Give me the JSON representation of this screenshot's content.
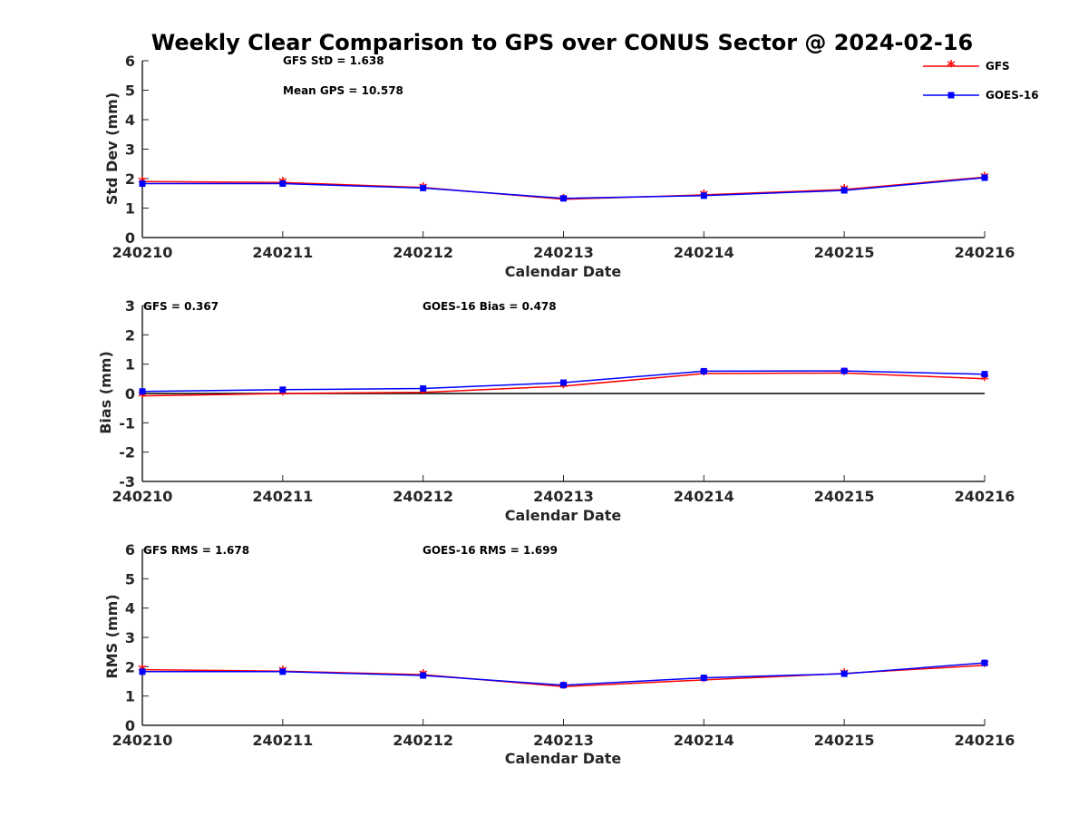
{
  "title": "Weekly Clear Comparison to GPS over CONUS Sector @ 2024-02-16",
  "legend": {
    "placement": "top-right",
    "entries": [
      {
        "label": "GFS",
        "color": "#ff0000",
        "marker": "asterisk"
      },
      {
        "label": "GOES-16",
        "color": "#0000ff",
        "marker": "square"
      }
    ]
  },
  "chart_data": [
    {
      "type": "line",
      "ylabel": "Std Dev (mm)",
      "xlabel": "Calendar Date",
      "categories": [
        "240210",
        "240211",
        "240212",
        "240213",
        "240214",
        "240215",
        "240216"
      ],
      "ylim": [
        0,
        6
      ],
      "yticks": [
        "0",
        "1",
        "2",
        "3",
        "4",
        "5",
        "6"
      ],
      "annotations": [
        "GFS StD = 1.638",
        "Mean GPS = 10.578"
      ],
      "series": [
        {
          "name": "GFS",
          "color": "#ff0000",
          "values": [
            1.9,
            1.87,
            1.7,
            1.3,
            1.45,
            1.63,
            2.05
          ]
        },
        {
          "name": "GOES-16",
          "color": "#0000ff",
          "values": [
            1.83,
            1.83,
            1.68,
            1.33,
            1.42,
            1.6,
            2.03
          ]
        }
      ]
    },
    {
      "type": "line",
      "ylabel": "Bias (mm)",
      "xlabel": "Calendar Date",
      "categories": [
        "240210",
        "240211",
        "240212",
        "240213",
        "240214",
        "240215",
        "240216"
      ],
      "ylim": [
        -3,
        3
      ],
      "yticks": [
        "-3",
        "-2",
        "-1",
        "0",
        "1",
        "2",
        "3"
      ],
      "zero_line": true,
      "annotations": [
        "GFS = 0.367",
        "GOES-16 Bias  = 0.478"
      ],
      "series": [
        {
          "name": "GFS",
          "color": "#ff0000",
          "values": [
            -0.08,
            0.0,
            0.04,
            0.25,
            0.68,
            0.7,
            0.5
          ]
        },
        {
          "name": "GOES-16",
          "color": "#0000ff",
          "values": [
            0.07,
            0.13,
            0.17,
            0.37,
            0.76,
            0.77,
            0.66
          ]
        }
      ]
    },
    {
      "type": "line",
      "ylabel": "RMS (mm)",
      "xlabel": "Calendar Date",
      "categories": [
        "240210",
        "240211",
        "240212",
        "240213",
        "240214",
        "240215",
        "240216"
      ],
      "ylim": [
        0,
        6
      ],
      "yticks": [
        "0",
        "1",
        "2",
        "3",
        "4",
        "5",
        "6"
      ],
      "annotations": [
        "GFS RMS = 1.678",
        "GOES-16 RMS = 1.699"
      ],
      "series": [
        {
          "name": "GFS",
          "color": "#ff0000",
          "values": [
            1.9,
            1.85,
            1.73,
            1.32,
            1.55,
            1.77,
            2.05
          ]
        },
        {
          "name": "GOES-16",
          "color": "#0000ff",
          "values": [
            1.83,
            1.83,
            1.7,
            1.37,
            1.62,
            1.76,
            2.13
          ]
        }
      ]
    }
  ]
}
